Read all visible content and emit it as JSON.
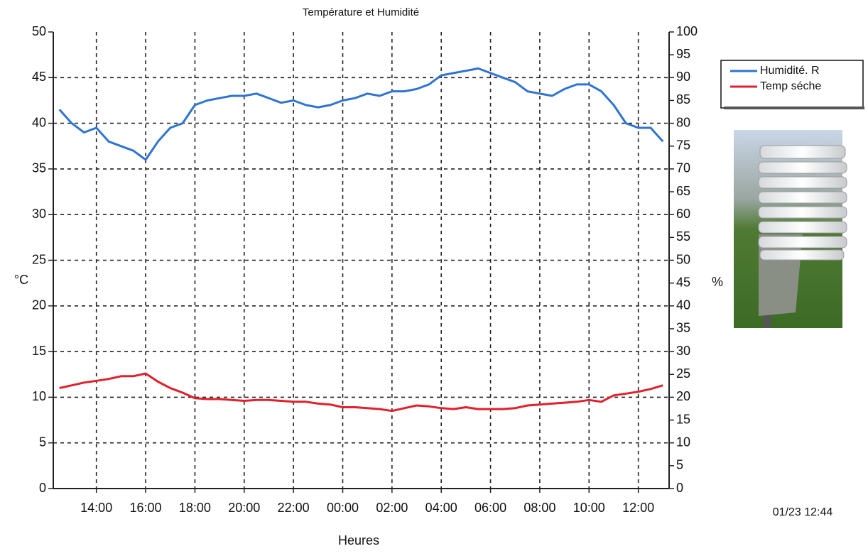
{
  "chart_data": {
    "type": "line",
    "title": "Température et Humidité",
    "x_label": "Heures",
    "y_label": "°C",
    "y2_label": "%",
    "timestamp": "01/23 12:44",
    "categories": [
      null,
      null,
      null,
      "14:00",
      null,
      null,
      null,
      "16:00",
      null,
      null,
      null,
      "18:00",
      null,
      null,
      null,
      "20:00",
      null,
      null,
      null,
      "22:00",
      null,
      null,
      null,
      "00:00",
      null,
      null,
      null,
      "02:00",
      null,
      null,
      null,
      "04:00",
      null,
      null,
      null,
      "06:00",
      null,
      null,
      null,
      "08:00",
      null,
      null,
      null,
      "10:00",
      null,
      null,
      null,
      "12:00",
      null,
      null
    ],
    "series": [
      {
        "name": "Humidité. R",
        "color": "#2f74d0",
        "axis": "y2",
        "values": [
          83,
          80,
          78,
          79,
          76,
          75,
          74,
          72,
          76,
          79,
          80,
          84,
          85,
          85.5,
          86,
          86,
          86.5,
          85.5,
          84.5,
          85,
          84,
          83.5,
          84,
          85,
          85.5,
          86.5,
          86,
          87,
          87,
          87.5,
          88.5,
          90.5,
          91,
          91.5,
          92,
          91,
          90,
          89,
          87,
          86.5,
          86,
          87.5,
          88.5,
          88.5,
          87,
          84,
          80,
          79,
          79,
          76
        ]
      },
      {
        "name": "Temp séche",
        "color": "#e0202c",
        "values": [
          11,
          11.3,
          11.6,
          11.8,
          12,
          12.3,
          12.3,
          12.6,
          11.7,
          11,
          10.5,
          9.9,
          9.8,
          9.8,
          9.7,
          9.6,
          9.7,
          9.7,
          9.6,
          9.5,
          9.5,
          9.3,
          9.2,
          8.9,
          8.9,
          8.8,
          8.7,
          8.5,
          8.8,
          9.1,
          9,
          8.8,
          8.7,
          8.9,
          8.7,
          8.7,
          8.7,
          8.8,
          9.1,
          9.2,
          9.3,
          9.4,
          9.5,
          9.7,
          9.5,
          10.2,
          10.4,
          10.6,
          10.9,
          11.3
        ]
      }
    ],
    "ylim": [
      0,
      50
    ],
    "yticks": [
      0,
      5,
      10,
      15,
      20,
      25,
      30,
      35,
      40,
      45,
      50
    ],
    "y2lim": [
      0,
      100
    ],
    "y2ticks": [
      0,
      5,
      10,
      15,
      20,
      25,
      30,
      35,
      40,
      45,
      50,
      55,
      60,
      65,
      70,
      75,
      80,
      85,
      90,
      95,
      100
    ],
    "grid": true,
    "legend": "outside-right"
  }
}
